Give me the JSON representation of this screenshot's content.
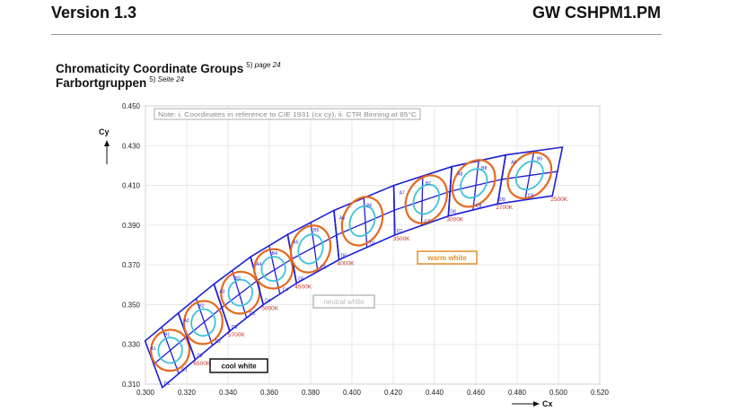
{
  "header": {
    "version": "Version 1.3",
    "product": "GW CSHPM1.PM"
  },
  "titles": {
    "en": "Chromaticity Coordinate Groups",
    "en_ref_num": "5)",
    "en_ref_page": "page 24",
    "de": "Farbortgruppen",
    "de_ref_num": "5)",
    "de_ref_page": "Seite 24"
  },
  "chart_data": {
    "type": "scatter",
    "note": "Note: i. Coordinates in reference to CIE 1931 (cx cy), ii. CTR Binning at 85°C",
    "xlabel": "Cx",
    "ylabel": "Cy",
    "xlim": [
      0.3,
      0.52
    ],
    "ylim": [
      0.31,
      0.45
    ],
    "xticks": [
      "0.300",
      "0.320",
      "0.340",
      "0.360",
      "0.380",
      "0.400",
      "0.420",
      "0.440",
      "0.460",
      "0.480",
      "0.500",
      "0.520"
    ],
    "yticks": [
      "0.310",
      "0.330",
      "0.350",
      "0.370",
      "0.390",
      "0.410",
      "0.430",
      "0.450"
    ],
    "grid": true,
    "colors": {
      "bins": "#1f1fd6",
      "macadam_outer": "#e46a1f",
      "macadam_inner": "#3fc1d9",
      "cct_label": "#c0392b"
    },
    "groups": [
      {
        "cct": "6500K",
        "x": 0.312,
        "y": 0.327,
        "labels_top": [
          "A1",
          "B1"
        ],
        "labels_bottom": [
          "D1",
          "C1"
        ]
      },
      {
        "cct": "5700K",
        "x": 0.328,
        "y": 0.341,
        "labels_top": [
          "A2",
          "B2"
        ],
        "labels_bottom": [
          "D2",
          "C2"
        ]
      },
      {
        "cct": "5000K",
        "x": 0.346,
        "y": 0.356,
        "labels_top": [
          "A3",
          "B3"
        ],
        "labels_bottom": [
          "D3",
          "C3"
        ]
      },
      {
        "cct": "4500K",
        "x": 0.362,
        "y": 0.368,
        "labels_top": [
          "A4",
          "B4"
        ],
        "labels_bottom": [
          "D4",
          "C4"
        ]
      },
      {
        "cct": "4000K",
        "x": 0.38,
        "y": 0.378,
        "labels_top": [
          "A5",
          "B5"
        ],
        "labels_bottom": [
          "D5",
          "C5"
        ]
      },
      {
        "cct": "3500K",
        "x": 0.405,
        "y": 0.392,
        "labels_top": [
          "A6",
          "B6"
        ],
        "labels_bottom": [
          "D6",
          "C6"
        ]
      },
      {
        "cct": "3000K",
        "x": 0.436,
        "y": 0.403,
        "labels_top": [
          "A7",
          "B7"
        ],
        "labels_bottom": [
          "D7",
          "C7"
        ]
      },
      {
        "cct": "2700K",
        "x": 0.459,
        "y": 0.411,
        "labels_top": [
          "A8",
          "B8"
        ],
        "labels_bottom": [
          "D8",
          "C8"
        ]
      },
      {
        "cct": "2500K",
        "x": 0.486,
        "y": 0.415,
        "labels_top": [
          "A9",
          "B9"
        ],
        "labels_bottom": [
          "D9",
          "C9"
        ]
      }
    ],
    "regions": [
      "cool white",
      "neutral white",
      "warm white"
    ]
  }
}
